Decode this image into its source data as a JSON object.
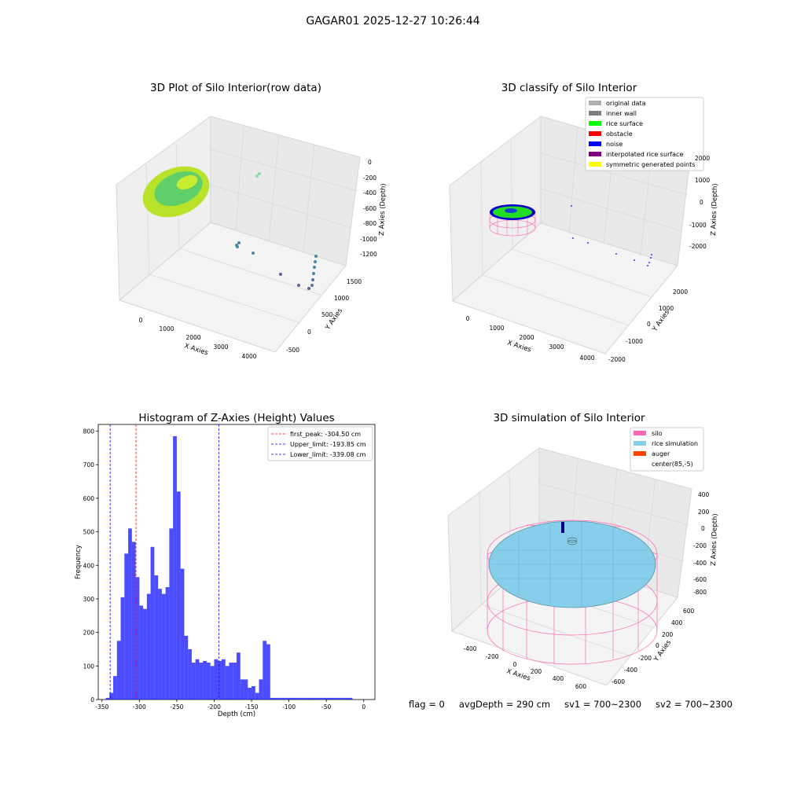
{
  "suptitle": "GAGAR01 2025-12-27 10:26:44",
  "footer": {
    "flag": "flag = 0",
    "avg": "avgDepth = 290 cm",
    "sv1": "sv1 = 700~2300",
    "sv2": "sv2 = 700~2300"
  },
  "colors": {
    "silo": "#ff69b4",
    "rice": "#87ceeb",
    "auger": "#ff4500",
    "hist": "#0000ff",
    "peak": "#ff0000",
    "limit": "#0000ff",
    "original": "#b0b0b0",
    "inner": "#808080",
    "surface": "#00ff00",
    "obstacle": "#ff0000",
    "noise": "#0000ff",
    "interp": "#800080",
    "symmetric": "#ffff00"
  },
  "panel1": {
    "title": "3D Plot of Silo Interior(row data)",
    "xlabel": "X Axies",
    "ylabel": "Y Axies",
    "zlabel": "Z Axies (Depth)",
    "xticks": [
      "0",
      "1000",
      "2000",
      "3000",
      "4000"
    ],
    "yticks": [
      "-500",
      "0",
      "500",
      "1000",
      "1500"
    ],
    "zticks": [
      "0",
      "-200",
      "-400",
      "-600",
      "-800",
      "-1000",
      "-1200"
    ]
  },
  "panel2": {
    "title": "3D classify of Silo Interior",
    "xlabel": "X Axies",
    "ylabel": "Y Axies",
    "zlabel": "Z Axies (Depth)",
    "xticks": [
      "0",
      "1000",
      "2000",
      "3000",
      "4000"
    ],
    "yticks": [
      "-2000",
      "-1000",
      "0",
      "1000",
      "2000"
    ],
    "zticks": [
      "2000",
      "1000",
      "0",
      "-1000",
      "-2000"
    ],
    "legend": [
      "original data",
      "inner wall",
      "rice surface",
      "obstacle",
      "noise",
      "interpolated rice surface",
      "symmetric generated points"
    ]
  },
  "panel4": {
    "title": "3D simulation of Silo Interior",
    "xlabel": "X Axies",
    "ylabel": "Y Axies",
    "zlabel": "Z Axies (Depth)",
    "xticks": [
      "-400",
      "-200",
      "0",
      "200",
      "400",
      "600"
    ],
    "yticks": [
      "-600",
      "-400",
      "-200",
      "0",
      "200",
      "400",
      "600"
    ],
    "zticks": [
      "400",
      "200",
      "0",
      "-200",
      "-400",
      "-600",
      "-800"
    ],
    "legend": [
      "silo",
      "rice simulation",
      "auger",
      "center(85,-5)"
    ]
  },
  "chart_data": [
    {
      "type": "bar",
      "title": "Histogram of Z-Axies (Height) Values",
      "xlabel": "Depth (cm)",
      "ylabel": "Frequency",
      "xlim": [
        -355,
        15
      ],
      "ylim": [
        0,
        820
      ],
      "xticks": [
        -350,
        -300,
        -250,
        -200,
        -150,
        -100,
        -50,
        0
      ],
      "yticks": [
        0,
        100,
        200,
        300,
        400,
        500,
        600,
        700,
        800
      ],
      "grid": false,
      "legend_position": "top-right",
      "bin_edges": [
        -345,
        -340,
        -335,
        -330,
        -325,
        -320,
        -315,
        -310,
        -305,
        -300,
        -295,
        -290,
        -285,
        -280,
        -275,
        -270,
        -265,
        -260,
        -255,
        -250,
        -245,
        -240,
        -235,
        -230,
        -225,
        -220,
        -215,
        -210,
        -205,
        -200,
        -195,
        -190,
        -185,
        -180,
        -175,
        -170,
        -165,
        -160,
        -155,
        -150,
        -145,
        -140,
        -135,
        -130,
        -125,
        -120,
        -115,
        -110,
        -105,
        -100,
        -95,
        -90,
        -85,
        -80,
        -75,
        -70,
        -65,
        -60,
        -55,
        -50,
        -45,
        -40,
        -35,
        -30,
        -25,
        -20,
        -15
      ],
      "values": [
        5,
        20,
        70,
        175,
        305,
        435,
        510,
        470,
        365,
        280,
        270,
        315,
        455,
        370,
        330,
        315,
        335,
        510,
        785,
        620,
        390,
        190,
        150,
        110,
        120,
        110,
        115,
        110,
        100,
        120,
        115,
        120,
        100,
        110,
        110,
        140,
        60,
        60,
        35,
        40,
        20,
        60,
        175,
        165,
        5,
        5,
        5,
        5,
        5,
        5,
        5,
        5,
        5,
        5,
        5,
        5,
        5,
        5,
        5,
        5,
        5,
        5,
        5,
        5,
        5,
        5
      ],
      "lines": [
        {
          "name": "first_peak: -304.50 cm",
          "x": -304.5,
          "color": "#ff0000"
        },
        {
          "name": "Upper_limit: -193.85 cm",
          "x": -193.85,
          "color": "#0000ff"
        },
        {
          "name": "Lower_limit: -339.08 cm",
          "x": -339.08,
          "color": "#0000ff"
        }
      ]
    }
  ]
}
